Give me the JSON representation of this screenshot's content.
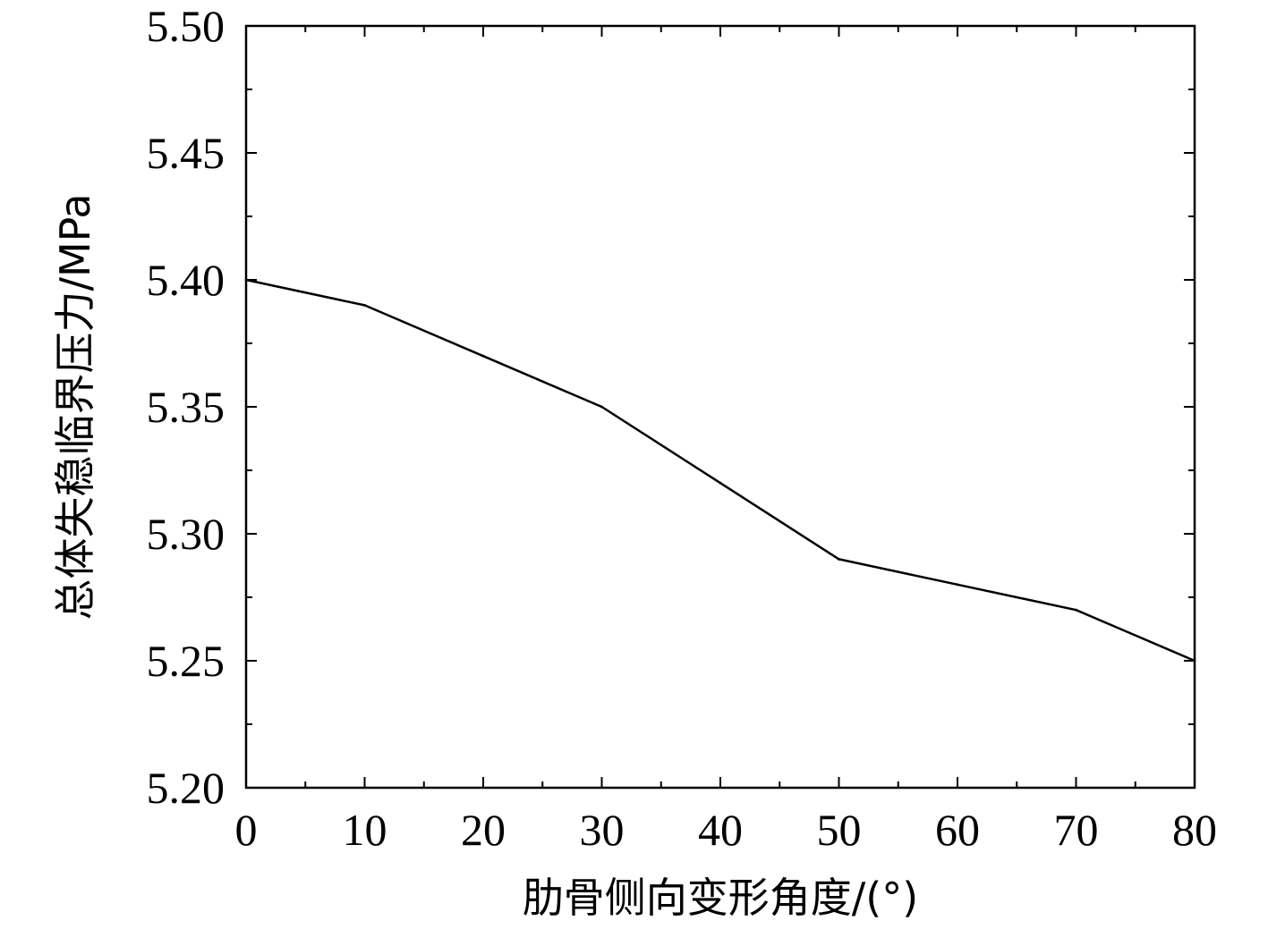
{
  "chart_data": {
    "type": "line",
    "title": "",
    "xlabel": "肋骨侧向变形角度/(°)",
    "ylabel": "总体失稳临界压力/MPa",
    "xlim": [
      0,
      80
    ],
    "ylim": [
      5.2,
      5.5
    ],
    "x_ticks": [
      "0",
      "10",
      "20",
      "30",
      "40",
      "50",
      "60",
      "70",
      "80"
    ],
    "y_ticks": [
      "5.20",
      "5.25",
      "5.30",
      "5.35",
      "5.40",
      "5.45",
      "5.50"
    ],
    "grid": false,
    "legend": "none",
    "series": [
      {
        "x": [
          0,
          10,
          20,
          30,
          40,
          50,
          60,
          70,
          80
        ],
        "values": [
          5.4,
          5.39,
          5.37,
          5.35,
          5.32,
          5.29,
          5.28,
          5.27,
          5.25
        ]
      }
    ],
    "colors": {
      "line": "#000000",
      "axes": "#000000"
    }
  }
}
